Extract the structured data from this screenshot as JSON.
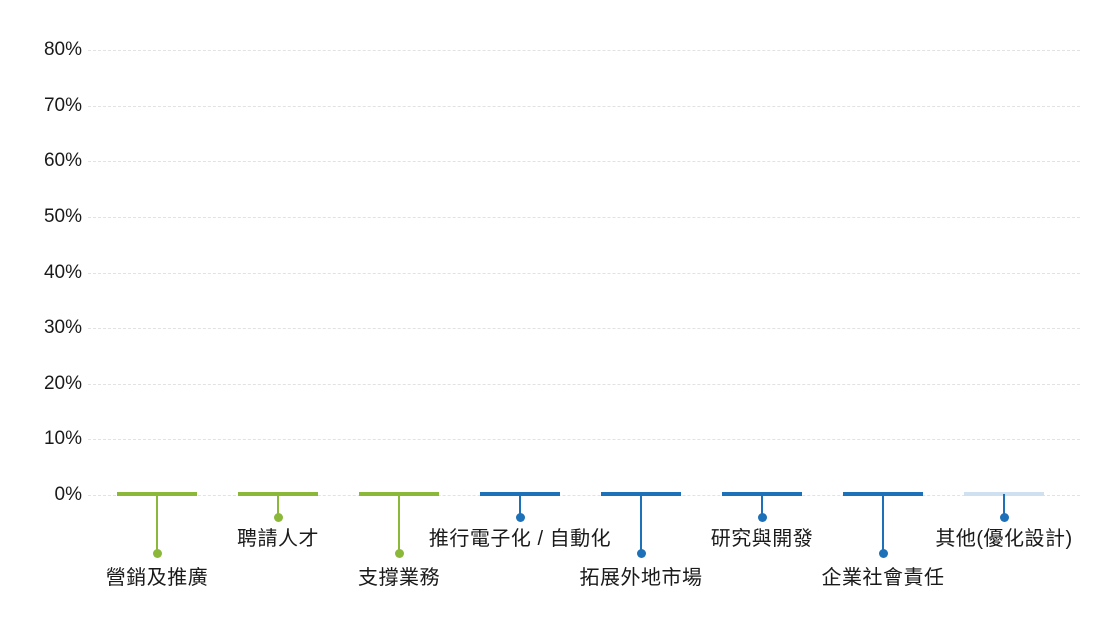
{
  "chart_data": {
    "type": "bar",
    "title": "",
    "xlabel": "",
    "ylabel": "",
    "unit": "%",
    "ylim": [
      0,
      80
    ],
    "grid": true,
    "legend": "none",
    "y_axis": {
      "ticks": [
        "80%",
        "70%",
        "60%",
        "50%",
        "40%",
        "30%",
        "20%",
        "10%",
        "0%"
      ]
    },
    "categories": [
      {
        "label": "營銷及推廣",
        "value": 0,
        "color": "#8cb83a",
        "bar_color": "#8cb83a",
        "drop": "long"
      },
      {
        "label": "聘請人才",
        "value": 0,
        "color": "#8cb83a",
        "bar_color": "#8cb83a",
        "drop": "short"
      },
      {
        "label": "支撐業務",
        "value": 0,
        "color": "#8cb83a",
        "bar_color": "#8cb83a",
        "drop": "long"
      },
      {
        "label": "推行電子化 / 自動化",
        "value": 0,
        "color": "#1d71b8",
        "bar_color": "#1d71b8",
        "drop": "short"
      },
      {
        "label": "拓展外地市場",
        "value": 0,
        "color": "#1d71b8",
        "bar_color": "#1d71b8",
        "drop": "long"
      },
      {
        "label": "研究與開發",
        "value": 0,
        "color": "#1d71b8",
        "bar_color": "#1d71b8",
        "drop": "short"
      },
      {
        "label": "企業社會責任",
        "value": 0,
        "color": "#1d71b8",
        "bar_color": "#1d71b8",
        "drop": "long"
      },
      {
        "label": "其他(優化設計)",
        "value": 0,
        "color": "#1d71b8",
        "bar_color": "#cfe0f0",
        "drop": "short"
      }
    ],
    "colors": {
      "series_green": "#8cb83a",
      "series_blue": "#1d71b8",
      "series_pale_blue": "#cfe0f0",
      "gridline": "#e2e2e2",
      "text": "#1a1a1a",
      "background": "#ffffff"
    }
  }
}
